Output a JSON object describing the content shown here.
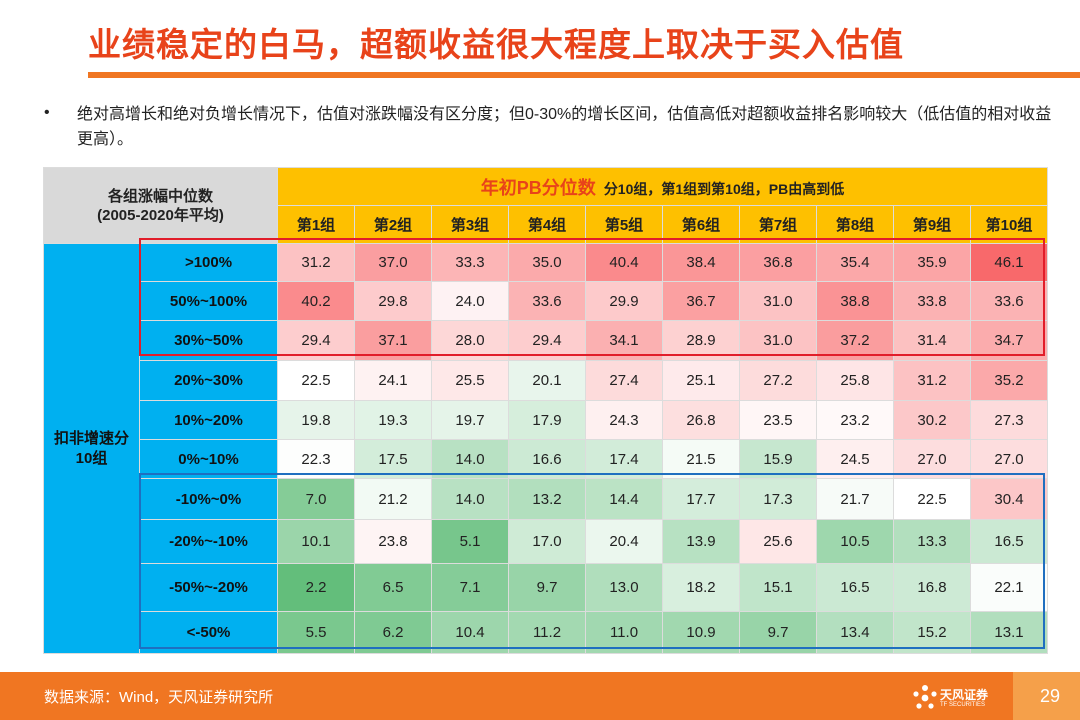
{
  "slide": {
    "title": "业绩稳定的白马，超额收益很大程度上取决于买入估值",
    "bullet": "绝对高增长和绝对负增长情况下，估值对涨跌幅没有区分度；但0-30%的增长区间，估值高低对超额收益排名影响较大（低估值的相对收益更高）。",
    "bullet_marker": "•"
  },
  "table": {
    "corner_line1": "各组涨幅中位数",
    "corner_line2": "(2005-2020年平均)",
    "header_main": "年初PB分位数",
    "header_sub": "分10组，第1组到第10组，PB由高到低",
    "side_line1": "扣非增速分",
    "side_line2": "10组",
    "columns": [
      "第1组",
      "第2组",
      "第3组",
      "第4组",
      "第5组",
      "第6组",
      "第7组",
      "第8组",
      "第9组",
      "第10组"
    ],
    "rows": [
      {
        "label": ">100%",
        "values": [
          "31.2",
          "37.0",
          "33.3",
          "35.0",
          "40.4",
          "38.4",
          "36.8",
          "35.4",
          "35.9",
          "46.1"
        ]
      },
      {
        "label": "50%~100%",
        "values": [
          "40.2",
          "29.8",
          "24.0",
          "33.6",
          "29.9",
          "36.7",
          "31.0",
          "38.8",
          "33.8",
          "33.6"
        ]
      },
      {
        "label": "30%~50%",
        "values": [
          "29.4",
          "37.1",
          "28.0",
          "29.4",
          "34.1",
          "28.9",
          "31.0",
          "37.2",
          "31.4",
          "34.7"
        ]
      },
      {
        "label": "20%~30%",
        "values": [
          "22.5",
          "24.1",
          "25.5",
          "20.1",
          "27.4",
          "25.1",
          "27.2",
          "25.8",
          "31.2",
          "35.2"
        ]
      },
      {
        "label": "10%~20%",
        "values": [
          "19.8",
          "19.3",
          "19.7",
          "17.9",
          "24.3",
          "26.8",
          "23.5",
          "23.2",
          "30.2",
          "27.3"
        ]
      },
      {
        "label": "0%~10%",
        "values": [
          "22.3",
          "17.5",
          "14.0",
          "16.6",
          "17.4",
          "21.5",
          "15.9",
          "24.5",
          "27.0",
          "27.0"
        ]
      },
      {
        "label": "-10%~0%",
        "values": [
          "7.0",
          "21.2",
          "14.0",
          "13.2",
          "14.4",
          "17.7",
          "17.3",
          "21.7",
          "22.5",
          "30.4"
        ]
      },
      {
        "label": "-20%~-10%",
        "values": [
          "10.1",
          "23.8",
          "5.1",
          "17.0",
          "20.4",
          "13.9",
          "25.6",
          "10.5",
          "13.3",
          "16.5"
        ]
      },
      {
        "label": "-50%~-20%",
        "values": [
          "2.2",
          "6.5",
          "7.1",
          "9.7",
          "13.0",
          "18.2",
          "15.1",
          "16.5",
          "16.8",
          "22.1"
        ]
      },
      {
        "label": "<-50%",
        "values": [
          "5.5",
          "6.2",
          "10.4",
          "11.2",
          "11.0",
          "10.9",
          "9.7",
          "13.4",
          "15.2",
          "13.1"
        ]
      }
    ]
  },
  "colors": {
    "title": "#e8431a",
    "accent_line": "#f07622",
    "header_yellow": "#fec000",
    "side_blue": "#00b0f0",
    "heat_high": "#f8696b",
    "heat_mid": "#ffffff",
    "heat_low": "#63be7b",
    "highlight_red": "#e11d2a",
    "highlight_blue": "#1f6fc0"
  },
  "footer": {
    "source": "数据来源：Wind，天风证券研究所",
    "logo_name": "天风证券",
    "logo_sub": "TF SECURITIES",
    "page": "29"
  }
}
